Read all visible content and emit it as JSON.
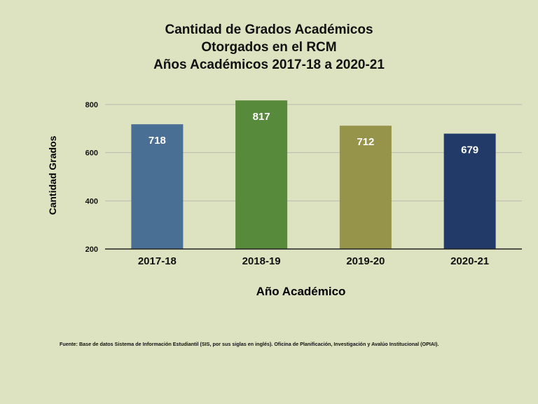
{
  "chart_data": {
    "type": "bar",
    "title_lines": [
      "Cantidad de Grados Académicos",
      "Otorgados en el RCM",
      "Años Académicos 2017-18 a 2020-21"
    ],
    "categories": [
      "2017-18",
      "2018-19",
      "2019-20",
      "2020-21"
    ],
    "values": [
      718,
      817,
      712,
      679
    ],
    "bar_colors": [
      "#4a6f94",
      "#578a3a",
      "#96934a",
      "#223a68"
    ],
    "xlabel": "Año Académico",
    "ylabel": "Cantidad Grados",
    "ylim": [
      200,
      800
    ],
    "yticks": [
      "200",
      "400",
      "600",
      "800"
    ],
    "grid": true,
    "legend": "none"
  },
  "source_note": "Fuente: Base de datos Sistema de Información Estudiantil (SIS, por sus siglas en inglés). Oficina de Planificación, Investigación y Avalúo Institucional (OPIAI)."
}
